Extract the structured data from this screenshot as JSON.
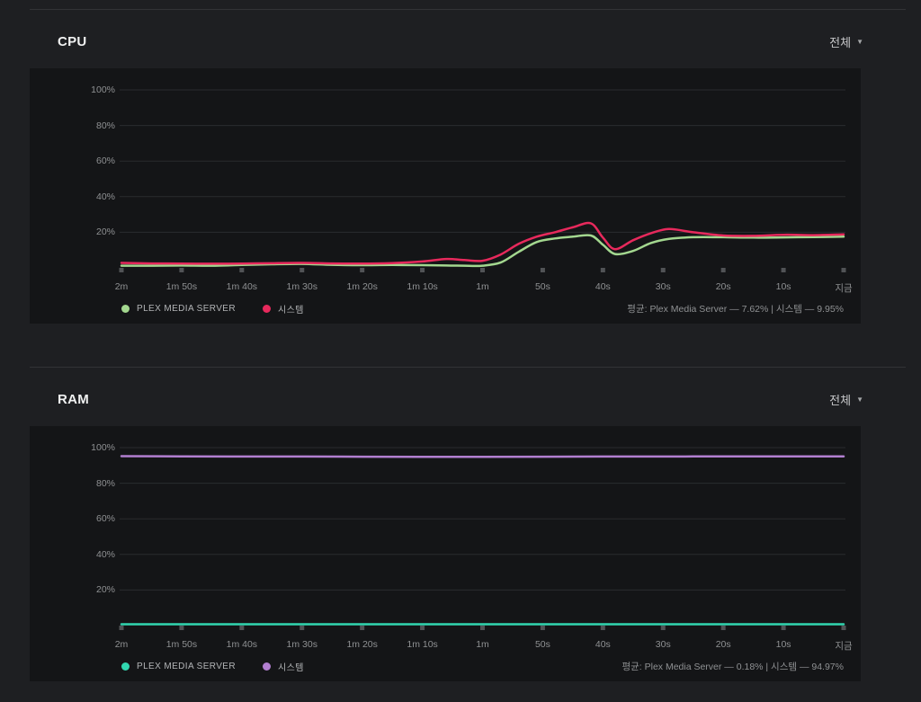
{
  "page": {
    "background": "#1e1f22",
    "panel_background": "#141517",
    "divider_color": "#323336"
  },
  "icons": {
    "chevron_down": "▼"
  },
  "panels": [
    {
      "title": "CPU",
      "range_label": "전체",
      "legend": [
        {
          "label": "PLEX MEDIA SERVER",
          "color": "#a3d78f"
        },
        {
          "label": "시스템",
          "color": "#e7295c"
        }
      ],
      "average_text": "평균: Plex Media Server — 7.62% | 시스템 — 9.95%"
    },
    {
      "title": "RAM",
      "range_label": "전체",
      "legend": [
        {
          "label": "PLEX MEDIA SERVER",
          "color": "#31d7b0"
        },
        {
          "label": "시스템",
          "color": "#b27fd0"
        }
      ],
      "average_text": "평균: Plex Media Server — 0.18% | 시스템 — 94.97%"
    }
  ],
  "chart_data": [
    {
      "type": "line",
      "title": "CPU",
      "x_axis": {
        "categories": [
          "2m",
          "1m 50s",
          "1m 40s",
          "1m 30s",
          "1m 20s",
          "1m 10s",
          "1m",
          "50s",
          "40s",
          "30s",
          "20s",
          "10s",
          "지금"
        ],
        "seconds_span": 120
      },
      "y_axis": {
        "ticks": [
          "100%",
          "80%",
          "60%",
          "40%",
          "20%"
        ],
        "ylim": [
          0,
          100
        ],
        "unit": "%"
      },
      "grid": "horizontal",
      "legend_position": "bottom-left",
      "series": [
        {
          "name": "PLEX MEDIA SERVER",
          "color": "#a3d78f",
          "average_percent": 7.62,
          "x_seconds": [
            0,
            5,
            10,
            15,
            20,
            25,
            30,
            35,
            40,
            45,
            50,
            54,
            57,
            60,
            63,
            66,
            69,
            72,
            75,
            78,
            80,
            82,
            85,
            88,
            91,
            95,
            100,
            105,
            110,
            115,
            120
          ],
          "values_percent": [
            1.2,
            1.2,
            1.3,
            1.2,
            1.6,
            2.0,
            2.2,
            1.7,
            1.5,
            1.6,
            1.5,
            1.3,
            1.2,
            1.2,
            3.0,
            9.0,
            14.5,
            16.5,
            17.5,
            18.2,
            13.0,
            7.8,
            9.5,
            14.0,
            16.3,
            17.2,
            17.2,
            17.0,
            17.1,
            17.3,
            17.5
          ]
        },
        {
          "name": "시스템",
          "color": "#e7295c",
          "average_percent": 9.95,
          "x_seconds": [
            0,
            5,
            10,
            15,
            20,
            25,
            30,
            35,
            40,
            45,
            50,
            54,
            57,
            60,
            63,
            66,
            69,
            72,
            75,
            78,
            80,
            82,
            85,
            88,
            91,
            95,
            100,
            105,
            110,
            115,
            120
          ],
          "values_percent": [
            2.8,
            2.5,
            2.4,
            2.3,
            2.4,
            2.6,
            2.8,
            2.5,
            2.4,
            2.7,
            3.6,
            5.0,
            4.4,
            4.0,
            7.5,
            13.5,
            17.5,
            20.0,
            22.8,
            25.0,
            17.0,
            10.5,
            15.5,
            19.5,
            21.8,
            20.0,
            18.2,
            18.0,
            18.6,
            18.4,
            18.8
          ]
        }
      ]
    },
    {
      "type": "line",
      "title": "RAM",
      "x_axis": {
        "categories": [
          "2m",
          "1m 50s",
          "1m 40s",
          "1m 30s",
          "1m 20s",
          "1m 10s",
          "1m",
          "50s",
          "40s",
          "30s",
          "20s",
          "10s",
          "지금"
        ],
        "seconds_span": 120
      },
      "y_axis": {
        "ticks": [
          "100%",
          "80%",
          "60%",
          "40%",
          "20%"
        ],
        "ylim": [
          0,
          100
        ],
        "unit": "%"
      },
      "grid": "horizontal",
      "legend_position": "bottom-left",
      "series": [
        {
          "name": "PLEX MEDIA SERVER",
          "color": "#31d7b0",
          "average_percent": 0.18,
          "x_seconds": [
            0,
            10,
            20,
            30,
            40,
            50,
            60,
            70,
            80,
            90,
            100,
            110,
            120
          ],
          "values_percent": [
            0.2,
            0.2,
            0.2,
            0.2,
            0.2,
            0.2,
            0.2,
            0.2,
            0.2,
            0.2,
            0.2,
            0.2,
            0.2
          ]
        },
        {
          "name": "시스템",
          "color": "#b27fd0",
          "average_percent": 94.97,
          "x_seconds": [
            0,
            10,
            20,
            30,
            40,
            50,
            60,
            70,
            80,
            90,
            100,
            110,
            120
          ],
          "values_percent": [
            95.2,
            95.1,
            95.0,
            95.0,
            94.9,
            94.8,
            94.8,
            94.9,
            95.0,
            95.0,
            95.1,
            95.1,
            95.1
          ]
        }
      ]
    }
  ]
}
